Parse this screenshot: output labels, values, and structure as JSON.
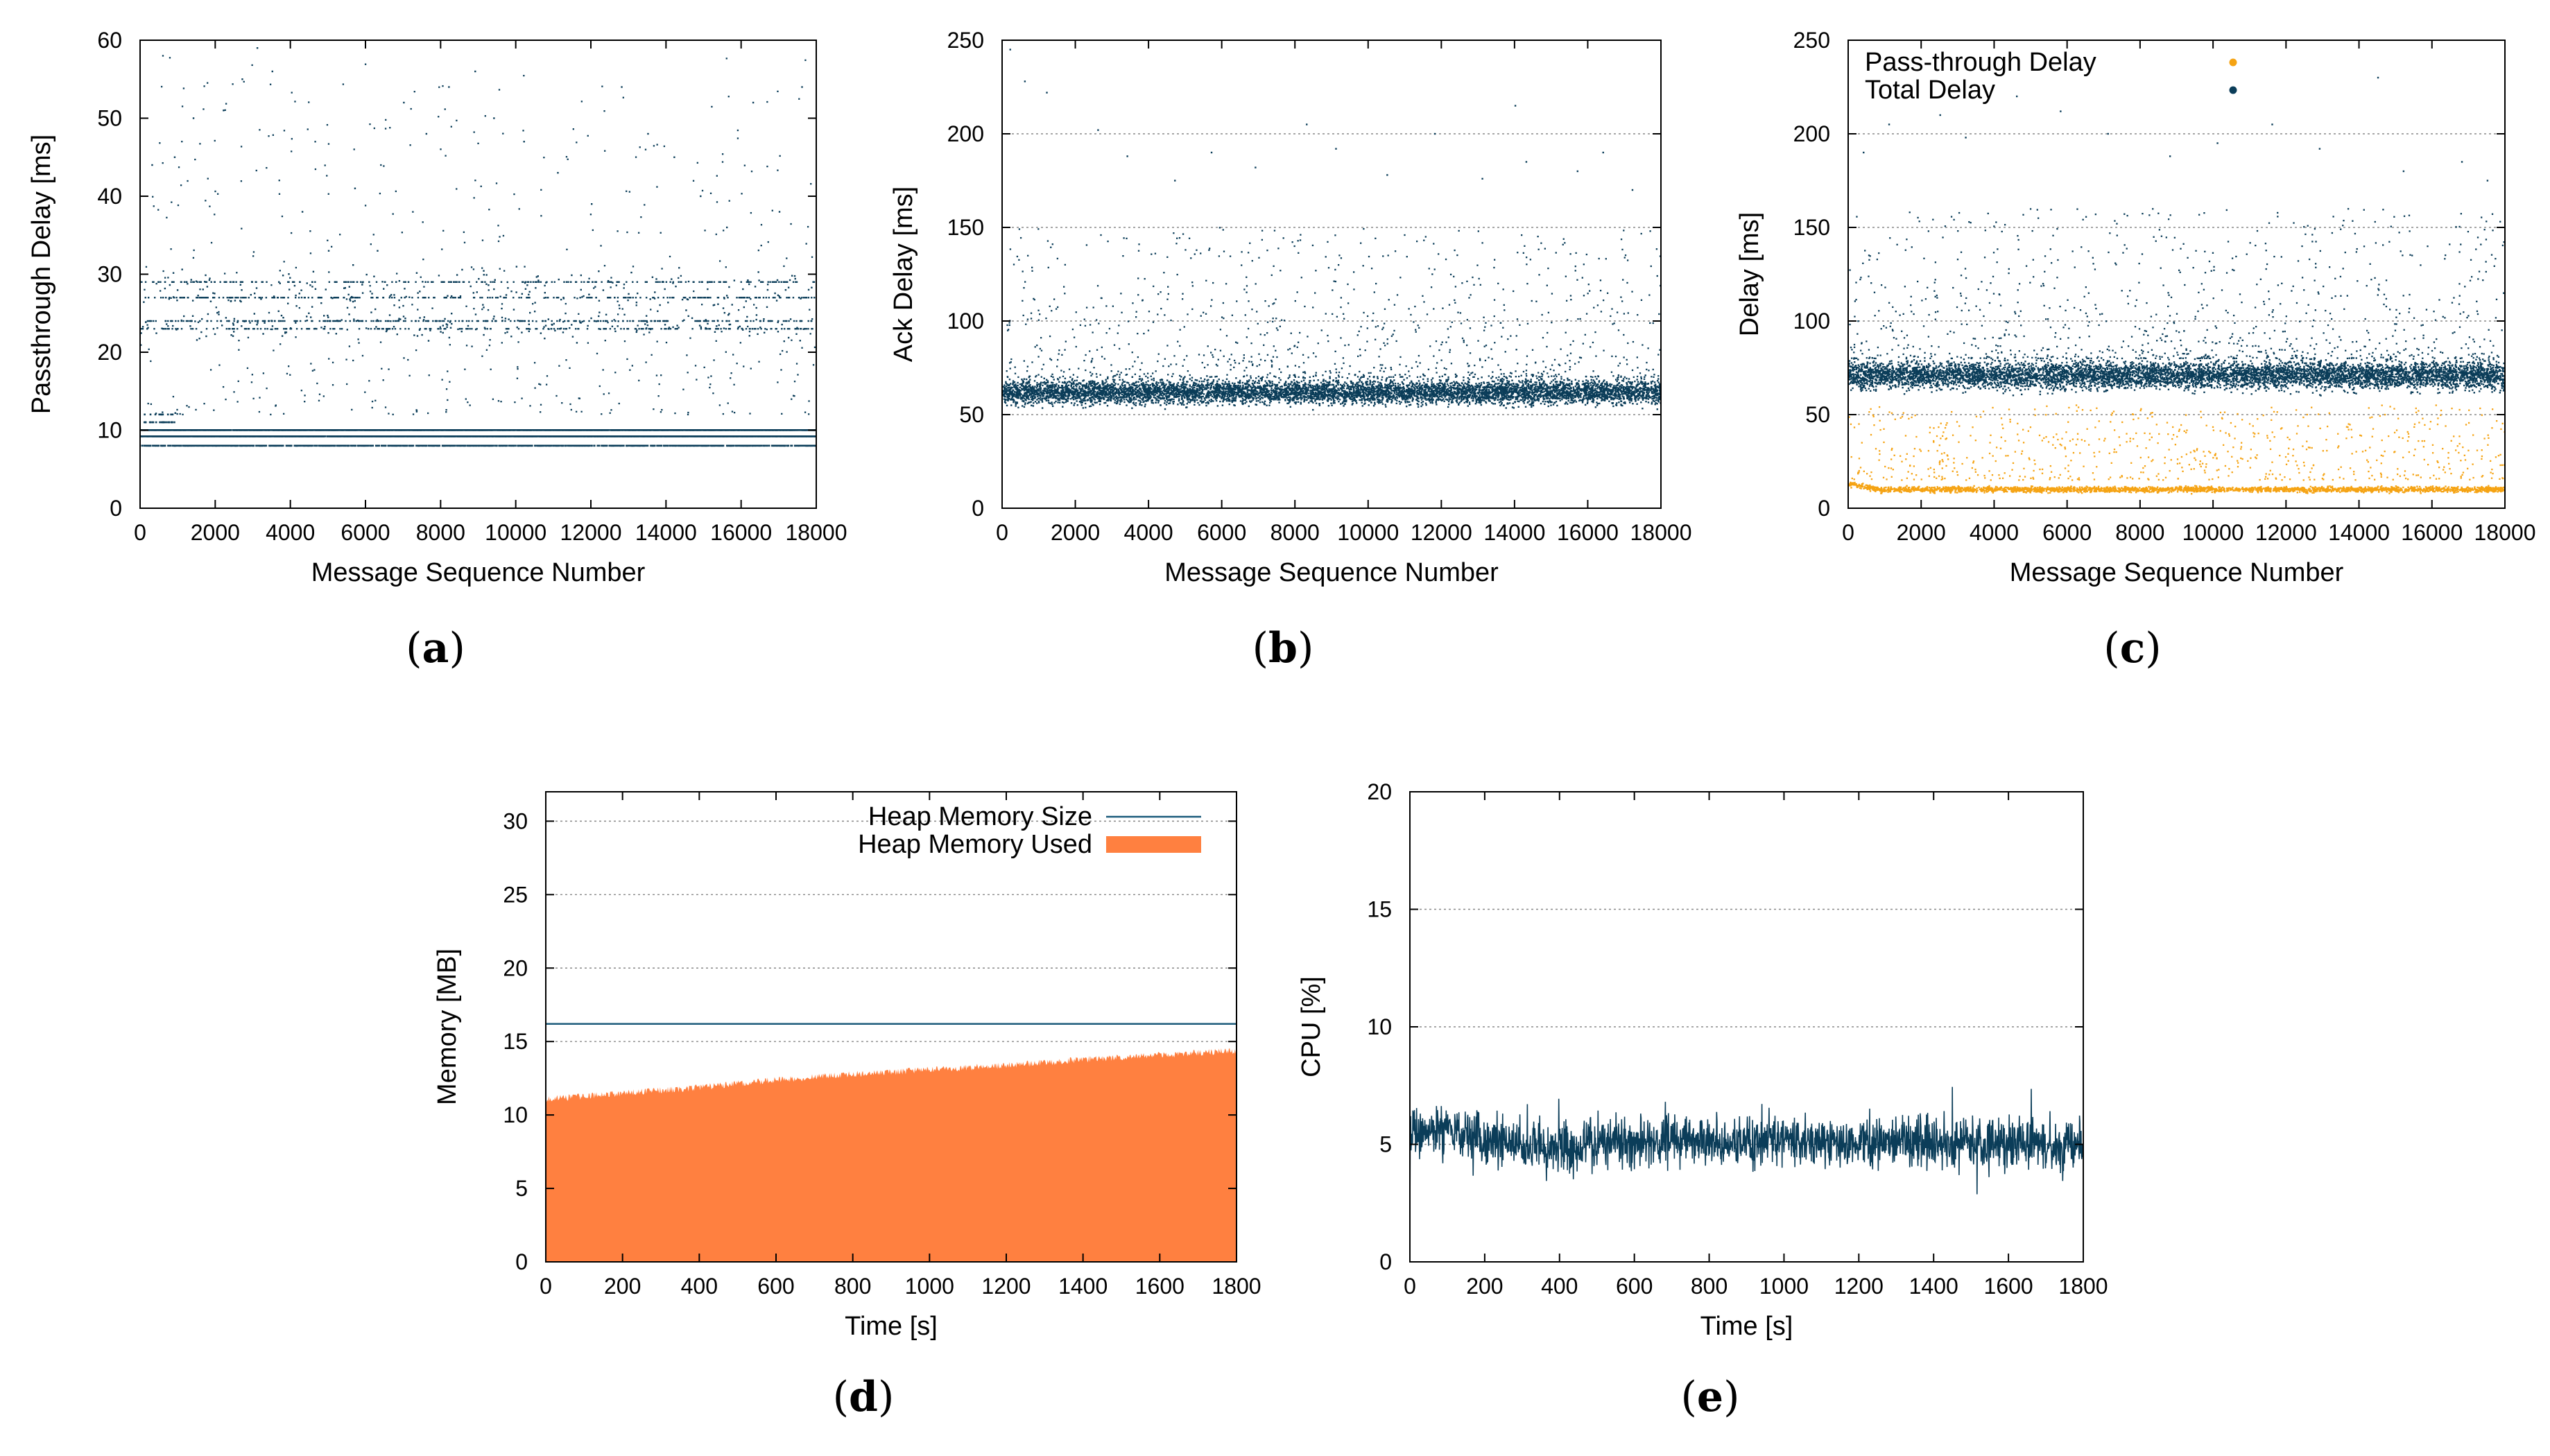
{
  "colors": {
    "dark": "#0b3d59",
    "orange": "#f5a313",
    "memfill": "#ff8040",
    "memline": "#1a5a7a"
  },
  "chart_data": [
    {
      "id": "a",
      "panel_label": "a",
      "type": "scatter",
      "title": "",
      "xlabel": "Message Sequence Number",
      "ylabel": "Passthrough Delay [ms]",
      "xlim": [
        0,
        18000
      ],
      "ylim": [
        0,
        60
      ],
      "xticks": [
        "0",
        "2000",
        "4000",
        "6000",
        "8000",
        "10000",
        "12000",
        "14000",
        "16000",
        "18000"
      ],
      "yticks": [
        "0",
        "10",
        "20",
        "30",
        "40",
        "50",
        "60"
      ],
      "grid": false,
      "series": [
        {
          "name": "Passthrough Delay",
          "color": "#0b3d59",
          "bands": [
            9,
            10,
            8,
            24,
            23,
            27,
            29
          ],
          "upper_outliers": [
            [
              300,
              44
            ],
            [
              900,
              45
            ],
            [
              1400,
              50
            ],
            [
              2200,
              51
            ],
            [
              2700,
              55
            ],
            [
              3100,
              59
            ],
            [
              3500,
              56
            ],
            [
              4300,
              38
            ],
            [
              5000,
              33
            ],
            [
              5700,
              41
            ],
            [
              6300,
              33
            ],
            [
              7000,
              52
            ],
            [
              7600,
              48
            ],
            [
              8200,
              54
            ],
            [
              8900,
              56
            ],
            [
              9400,
              50
            ],
            [
              10200,
              47
            ],
            [
              11100,
              43
            ],
            [
              12000,
              39
            ],
            [
              12800,
              54
            ],
            [
              13500,
              48
            ],
            [
              14200,
              45
            ],
            [
              14900,
              40
            ],
            [
              15600,
              36
            ],
            [
              16300,
              52
            ],
            [
              17000,
              38
            ],
            [
              17600,
              54
            ]
          ]
        }
      ]
    },
    {
      "id": "b",
      "panel_label": "b",
      "type": "scatter",
      "title": "",
      "xlabel": "Message Sequence Number",
      "ylabel": "Ack Delay [ms]",
      "xlim": [
        0,
        18000
      ],
      "ylim": [
        0,
        250
      ],
      "xticks": [
        "0",
        "2000",
        "4000",
        "6000",
        "8000",
        "10000",
        "12000",
        "14000",
        "16000",
        "18000"
      ],
      "yticks": [
        "0",
        "50",
        "100",
        "150",
        "200",
        "250"
      ],
      "grid": true,
      "series": [
        {
          "name": "Ack Delay",
          "color": "#0b3d59",
          "center": 62,
          "spread": 8,
          "upper_outliers": [
            [
              200,
              245
            ],
            [
              600,
              228
            ],
            [
              1200,
              222
            ],
            [
              2600,
              202
            ],
            [
              3400,
              188
            ],
            [
              4700,
              175
            ],
            [
              5700,
              190
            ],
            [
              6900,
              182
            ],
            [
              8300,
              205
            ],
            [
              9100,
              192
            ],
            [
              10500,
              178
            ],
            [
              11800,
              200
            ],
            [
              13100,
              176
            ],
            [
              14000,
              215
            ],
            [
              14300,
              185
            ],
            [
              15700,
              180
            ],
            [
              16400,
              190
            ],
            [
              17200,
              170
            ]
          ]
        }
      ]
    },
    {
      "id": "c",
      "panel_label": "c",
      "type": "scatter",
      "title": "",
      "xlabel": "Message Sequence Number",
      "ylabel": "Delay [ms]",
      "xlim": [
        0,
        18000
      ],
      "ylim": [
        0,
        250
      ],
      "xticks": [
        "0",
        "2000",
        "4000",
        "6000",
        "8000",
        "10000",
        "12000",
        "14000",
        "16000",
        "18000"
      ],
      "yticks": [
        "0",
        "50",
        "100",
        "150",
        "200",
        "250"
      ],
      "grid": true,
      "legend": "top-left",
      "series": [
        {
          "name": "Pass-through Delay",
          "color": "#f5a313",
          "center": 10,
          "spread": 3
        },
        {
          "name": "Total Delay",
          "color": "#0b3d59",
          "center": 71,
          "spread": 9,
          "upper_outliers": [
            [
              400,
              190
            ],
            [
              1100,
              205
            ],
            [
              2500,
              210
            ],
            [
              3200,
              198
            ],
            [
              4600,
              220
            ],
            [
              5800,
              212
            ],
            [
              7100,
              200
            ],
            [
              8800,
              188
            ],
            [
              10100,
              195
            ],
            [
              11600,
              205
            ],
            [
              12900,
              192
            ],
            [
              14500,
              230
            ],
            [
              15200,
              180
            ],
            [
              16800,
              185
            ],
            [
              17500,
              175
            ]
          ]
        }
      ]
    },
    {
      "id": "d",
      "panel_label": "d",
      "type": "area",
      "title": "",
      "xlabel": "Time [s]",
      "ylabel": "Memory [MB]",
      "xlim": [
        0,
        1800
      ],
      "ylim": [
        0,
        32
      ],
      "xticks": [
        "0",
        "200",
        "400",
        "600",
        "800",
        "1000",
        "1200",
        "1400",
        "1600",
        "1800"
      ],
      "yticks": [
        "0",
        "5",
        "10",
        "15",
        "20",
        "25",
        "30"
      ],
      "grid": true,
      "legend": "top-right",
      "series": [
        {
          "name": "Heap Memory Size",
          "style": "line",
          "color": "#1a5a7a",
          "x": [
            0,
            1800
          ],
          "values": [
            16.2,
            16.2
          ]
        },
        {
          "name": "Heap Memory Used",
          "style": "area",
          "color": "#ff8040",
          "x": [
            0,
            200,
            400,
            600,
            800,
            1000,
            1200,
            1400,
            1600,
            1800
          ],
          "values": [
            11.3,
            11.7,
            12.1,
            12.6,
            13.0,
            13.3,
            13.6,
            14.0,
            14.3,
            14.6
          ]
        }
      ]
    },
    {
      "id": "e",
      "panel_label": "e",
      "type": "line",
      "title": "",
      "xlabel": "Time [s]",
      "ylabel": "CPU [%]",
      "xlim": [
        0,
        1800
      ],
      "ylim": [
        0,
        20
      ],
      "xticks": [
        "0",
        "200",
        "400",
        "600",
        "800",
        "1000",
        "1200",
        "1400",
        "1600",
        "1800"
      ],
      "yticks": [
        "0",
        "5",
        "10",
        "15",
        "20"
      ],
      "grid": true,
      "series": [
        {
          "name": "CPU",
          "color": "#0b3d59",
          "x": [
            0,
            100,
            200,
            300,
            400,
            500,
            600,
            700,
            800,
            900,
            1000,
            1100,
            1200,
            1300,
            1400,
            1500,
            1600,
            1700,
            1800
          ],
          "values": [
            5.8,
            5.6,
            5.2,
            5.0,
            4.9,
            5.1,
            5.0,
            5.2,
            5.1,
            5.0,
            5.2,
            5.1,
            5.0,
            5.2,
            5.1,
            5.0,
            5.1,
            5.0,
            5.0
          ]
        }
      ]
    }
  ]
}
